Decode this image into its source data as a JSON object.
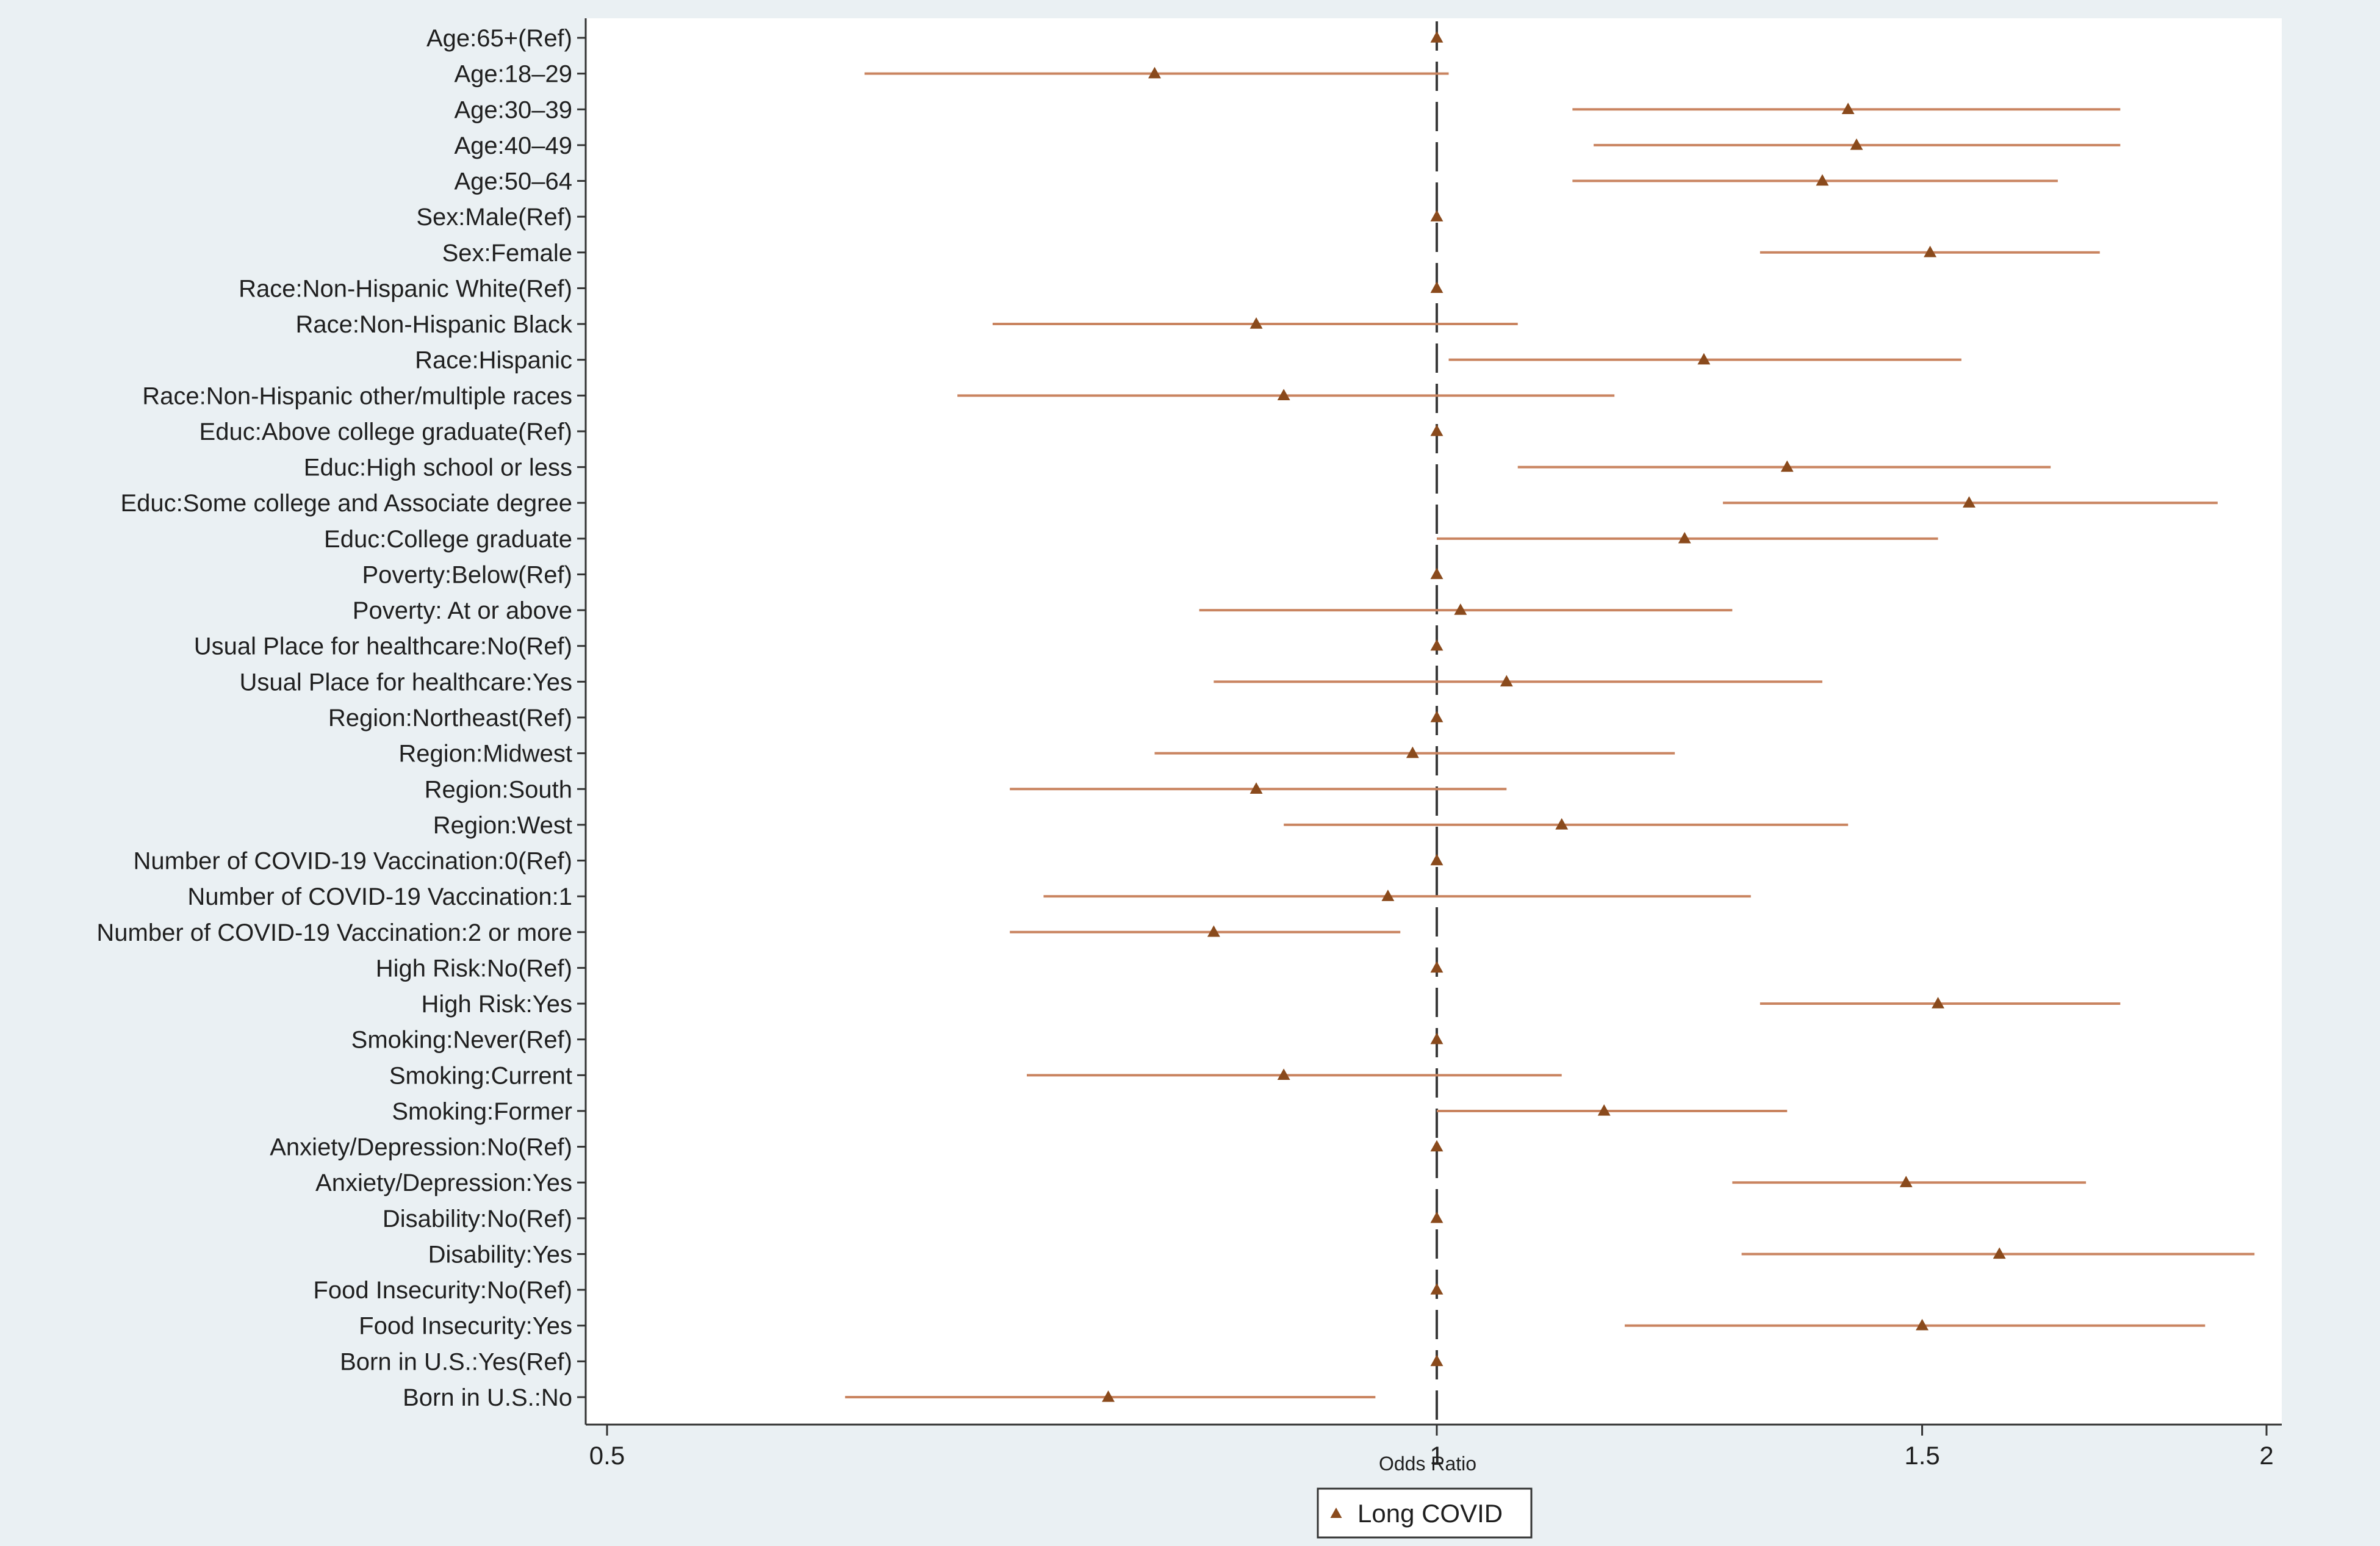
{
  "colors": {
    "background": "#eaf0f3",
    "plot_background": "#ffffff",
    "marker": "#8a4a1c",
    "ci_line": "#c98460",
    "ref_line": "#3a3a3a",
    "axis": "#333333"
  },
  "chart_data": {
    "type": "forest",
    "xlabel": "Odds Ratio",
    "xscale": "log",
    "xlim": [
      0.5,
      2.0
    ],
    "xticks": [
      0.5,
      1,
      1.5,
      2
    ],
    "xtick_labels": [
      "0.5",
      "1",
      "1.5",
      "2"
    ],
    "reference_line": 1,
    "legend": {
      "label": "Long COVID",
      "position": "bottom-center"
    },
    "series": [
      {
        "name": "Long COVID",
        "rows": [
          {
            "label": "Age:65+(Ref)",
            "or": 1.0,
            "lo": 1.0,
            "hi": 1.0
          },
          {
            "label": "Age:18–29",
            "or": 0.79,
            "lo": 0.62,
            "hi": 1.01
          },
          {
            "label": "Age:30–39",
            "or": 1.41,
            "lo": 1.12,
            "hi": 1.77
          },
          {
            "label": "Age:40–49",
            "or": 1.42,
            "lo": 1.14,
            "hi": 1.77
          },
          {
            "label": "Age:50–64",
            "or": 1.38,
            "lo": 1.12,
            "hi": 1.68
          },
          {
            "label": "Sex:Male(Ref)",
            "or": 1.0,
            "lo": 1.0,
            "hi": 1.0
          },
          {
            "label": "Sex:Female",
            "or": 1.51,
            "lo": 1.31,
            "hi": 1.74
          },
          {
            "label": "Race:Non-Hispanic White(Ref)",
            "or": 1.0,
            "lo": 1.0,
            "hi": 1.0
          },
          {
            "label": "Race:Non-Hispanic Black",
            "or": 0.86,
            "lo": 0.69,
            "hi": 1.07
          },
          {
            "label": "Race:Hispanic",
            "or": 1.25,
            "lo": 1.01,
            "hi": 1.55
          },
          {
            "label": "Race:Non-Hispanic other/multiple races",
            "or": 0.88,
            "lo": 0.67,
            "hi": 1.16
          },
          {
            "label": "Educ:Above college graduate(Ref)",
            "or": 1.0,
            "lo": 1.0,
            "hi": 1.0
          },
          {
            "label": "Educ:High school or less",
            "or": 1.34,
            "lo": 1.07,
            "hi": 1.67
          },
          {
            "label": "Educ:Some college and Associate degree",
            "or": 1.56,
            "lo": 1.27,
            "hi": 1.92
          },
          {
            "label": "Educ:College graduate",
            "or": 1.23,
            "lo": 1.0,
            "hi": 1.52
          },
          {
            "label": "Poverty:Below(Ref)",
            "or": 1.0,
            "lo": 1.0,
            "hi": 1.0
          },
          {
            "label": "Poverty: At or above",
            "or": 1.02,
            "lo": 0.82,
            "hi": 1.28
          },
          {
            "label": "Usual Place for healthcare:No(Ref)",
            "or": 1.0,
            "lo": 1.0,
            "hi": 1.0
          },
          {
            "label": "Usual Place for healthcare:Yes",
            "or": 1.06,
            "lo": 0.83,
            "hi": 1.38
          },
          {
            "label": "Region:Northeast(Ref)",
            "or": 1.0,
            "lo": 1.0,
            "hi": 1.0
          },
          {
            "label": "Region:Midwest",
            "or": 0.98,
            "lo": 0.79,
            "hi": 1.22
          },
          {
            "label": "Region:South",
            "or": 0.86,
            "lo": 0.7,
            "hi": 1.06
          },
          {
            "label": "Region:West",
            "or": 1.11,
            "lo": 0.88,
            "hi": 1.41
          },
          {
            "label": "Number of COVID-19 Vaccination:0(Ref)",
            "or": 1.0,
            "lo": 1.0,
            "hi": 1.0
          },
          {
            "label": "Number of COVID-19 Vaccination:1",
            "or": 0.96,
            "lo": 0.72,
            "hi": 1.3
          },
          {
            "label": "Number of COVID-19 Vaccination:2 or more",
            "or": 0.83,
            "lo": 0.7,
            "hi": 0.97
          },
          {
            "label": "High Risk:No(Ref)",
            "or": 1.0,
            "lo": 1.0,
            "hi": 1.0
          },
          {
            "label": "High Risk:Yes",
            "or": 1.52,
            "lo": 1.31,
            "hi": 1.77
          },
          {
            "label": "Smoking:Never(Ref)",
            "or": 1.0,
            "lo": 1.0,
            "hi": 1.0
          },
          {
            "label": "Smoking:Current",
            "or": 0.88,
            "lo": 0.71,
            "hi": 1.11
          },
          {
            "label": "Smoking:Former",
            "or": 1.15,
            "lo": 1.0,
            "hi": 1.34
          },
          {
            "label": "Anxiety/Depression:No(Ref)",
            "or": 1.0,
            "lo": 1.0,
            "hi": 1.0
          },
          {
            "label": "Anxiety/Depression:Yes",
            "or": 1.48,
            "lo": 1.28,
            "hi": 1.72
          },
          {
            "label": "Disability:No(Ref)",
            "or": 1.0,
            "lo": 1.0,
            "hi": 1.0
          },
          {
            "label": "Disability:Yes",
            "or": 1.6,
            "lo": 1.29,
            "hi": 1.98
          },
          {
            "label": "Food Insecurity:No(Ref)",
            "or": 1.0,
            "lo": 1.0,
            "hi": 1.0
          },
          {
            "label": "Food Insecurity:Yes",
            "or": 1.5,
            "lo": 1.17,
            "hi": 1.9
          },
          {
            "label": "Born in U.S.:Yes(Ref)",
            "or": 1.0,
            "lo": 1.0,
            "hi": 1.0
          },
          {
            "label": "Born in U.S.:No",
            "or": 0.76,
            "lo": 0.61,
            "hi": 0.95
          }
        ]
      }
    ]
  }
}
